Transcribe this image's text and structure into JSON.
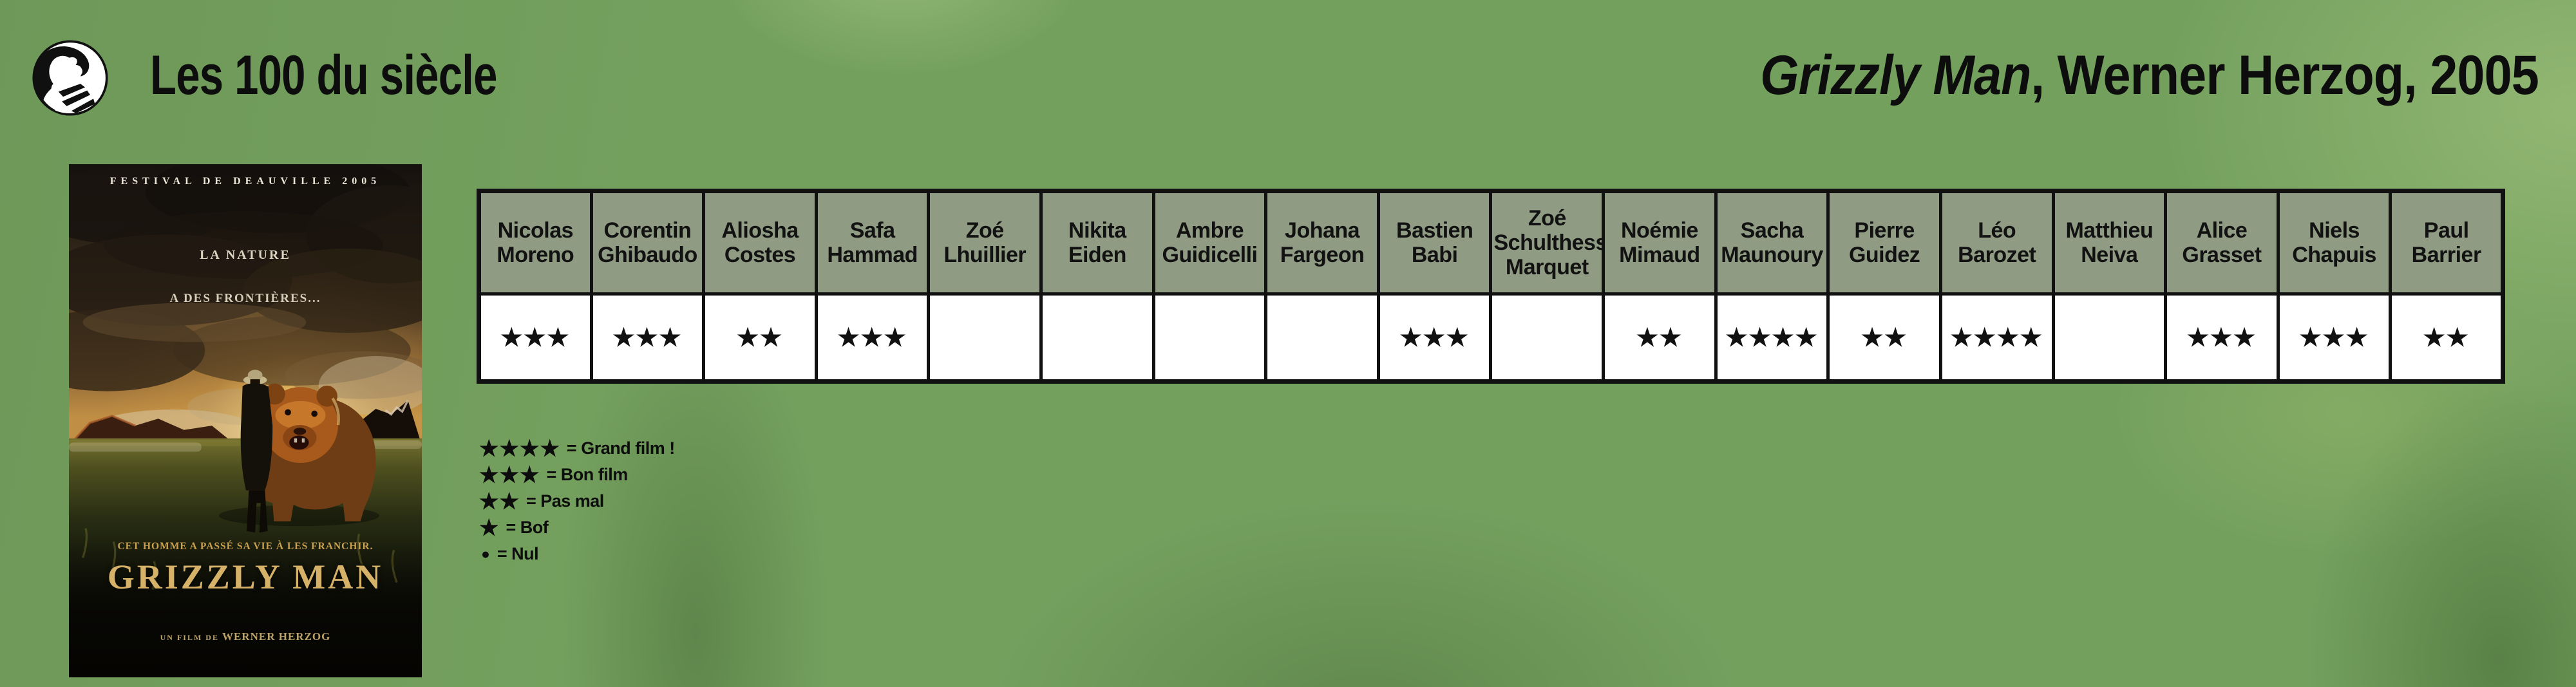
{
  "header": {
    "title": "Les 100 du siècle",
    "film_title": "Grizzly Man",
    "film_meta": ", Werner Herzog, 2005"
  },
  "poster": {
    "festival": "FESTIVAL DE DEAUVILLE 2005",
    "tagline_1": "LA NATURE",
    "tagline_2": "A DES FRONTIÈRES...",
    "tagline_3": "CET HOMME A PASSÉ SA VIE À LES FRANCHIR.",
    "title": "GRIZZLY MAN",
    "credit_prefix": "UN FILM DE ",
    "credit_name": "WERNER HERZOG"
  },
  "ratings": {
    "star_symbol": "★",
    "critics": [
      "Nicolas Moreno",
      "Corentin Ghibaudo",
      "Aliosha Costes",
      "Safa Hammad",
      "Zoé Lhuillier",
      "Nikita Eiden",
      "Ambre Guidicelli",
      "Johana Fargeon",
      "Bastien Babi",
      "Zoé Schulthess Marquet",
      "Noémie Mimaud",
      "Sacha Maunoury",
      "Pierre Guidez",
      "Léo Barozet",
      "Matthieu Neiva",
      "Alice Grasset",
      "Niels Chapuis",
      "Paul Barrier"
    ],
    "stars": [
      3,
      3,
      2,
      3,
      null,
      null,
      null,
      null,
      3,
      null,
      2,
      4,
      2,
      4,
      null,
      3,
      3,
      2
    ]
  },
  "legend": {
    "items": [
      {
        "symbol": "★★★★",
        "label": "= Grand film !"
      },
      {
        "symbol": "★★★",
        "label": "= Bon film"
      },
      {
        "symbol": "★★",
        "label": "= Pas mal"
      },
      {
        "symbol": "★",
        "label": "= Bof"
      },
      {
        "symbol": "●",
        "label": "= Nul"
      }
    ]
  },
  "colors": {
    "bg_green": "#74a05e",
    "header_bg": "#8f9b82",
    "border_col": "#111111",
    "star_col": "#111111",
    "gold": "#d6b268"
  }
}
